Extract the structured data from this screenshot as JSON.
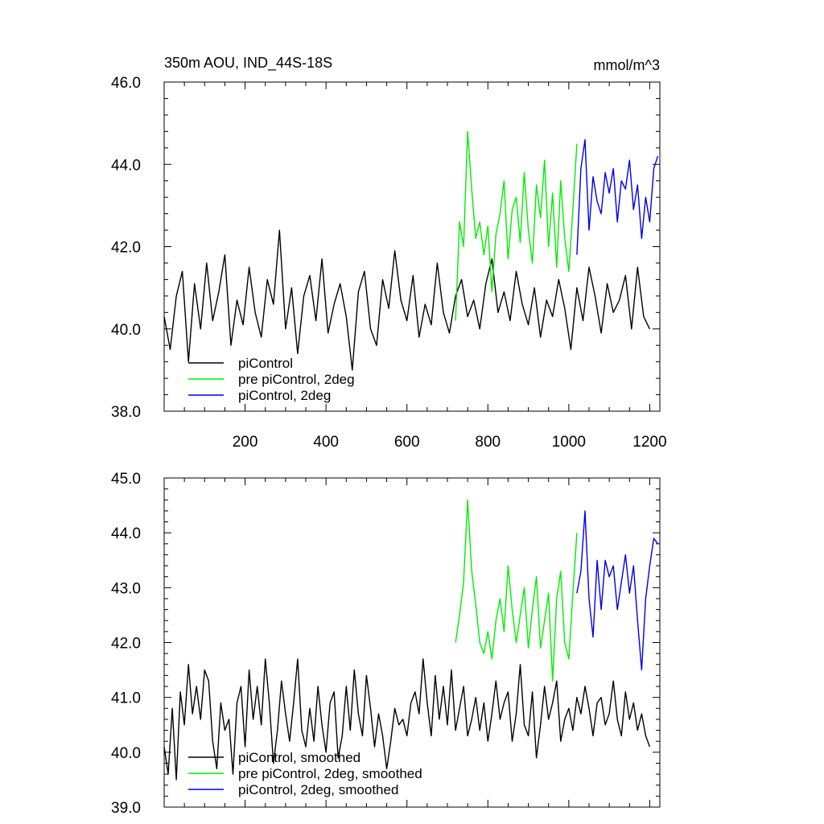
{
  "chart_data": [
    {
      "type": "line",
      "title": "350m AOU, IND_44S-18S",
      "units": "mmol/m^3",
      "xlim": [
        0,
        1225
      ],
      "ylim": [
        38.0,
        46.0
      ],
      "x_ticks": [
        200,
        400,
        600,
        800,
        1000,
        1200
      ],
      "x_tick_labels": [
        "200",
        "400",
        "600",
        "800",
        "1000",
        "1200"
      ],
      "y_ticks": [
        38.0,
        40.0,
        42.0,
        44.0,
        46.0
      ],
      "y_tick_labels": [
        "38.0",
        "40.0",
        "42.0",
        "44.0",
        "46.0"
      ],
      "legend_position": "bottom-left",
      "series": [
        {
          "name": "piControl",
          "color": "#000000",
          "x": [
            0,
            15,
            30,
            45,
            60,
            75,
            90,
            105,
            120,
            135,
            150,
            165,
            180,
            195,
            210,
            225,
            240,
            255,
            270,
            285,
            300,
            315,
            330,
            345,
            360,
            375,
            390,
            405,
            420,
            435,
            450,
            465,
            480,
            495,
            510,
            525,
            540,
            555,
            570,
            585,
            600,
            615,
            630,
            645,
            660,
            675,
            690,
            705,
            720,
            735,
            750,
            765,
            780,
            795,
            810,
            825,
            840,
            855,
            870,
            885,
            900,
            915,
            930,
            945,
            960,
            975,
            990,
            1005,
            1020,
            1035,
            1050,
            1065,
            1080,
            1095,
            1110,
            1125,
            1140,
            1155,
            1170,
            1185,
            1200
          ],
          "y": [
            40.3,
            39.5,
            40.8,
            41.4,
            39.2,
            41.1,
            40.0,
            41.6,
            40.2,
            40.9,
            41.8,
            39.6,
            40.7,
            40.1,
            41.5,
            40.4,
            39.8,
            41.2,
            40.6,
            42.4,
            40.0,
            41.0,
            39.4,
            40.8,
            41.3,
            40.2,
            41.7,
            39.9,
            40.6,
            41.1,
            40.3,
            39.0,
            40.9,
            41.4,
            40.0,
            39.6,
            41.2,
            40.5,
            41.9,
            40.7,
            40.2,
            41.3,
            39.8,
            40.6,
            40.1,
            41.6,
            40.4,
            39.9,
            40.8,
            41.2,
            40.3,
            40.7,
            40.0,
            41.1,
            41.7,
            40.4,
            40.9,
            40.2,
            41.4,
            40.6,
            40.1,
            41.0,
            39.8,
            40.7,
            40.3,
            41.2,
            40.5,
            39.5,
            41.0,
            40.2,
            41.5,
            40.8,
            39.9,
            41.1,
            40.4,
            40.7,
            41.3,
            40.0,
            41.5,
            40.3,
            40.0
          ]
        },
        {
          "name": "pre piControl, 2deg",
          "color": "#00ee00",
          "x": [
            720,
            730,
            740,
            750,
            760,
            770,
            780,
            790,
            800,
            810,
            820,
            830,
            840,
            850,
            860,
            870,
            880,
            890,
            900,
            910,
            920,
            930,
            940,
            950,
            960,
            970,
            980,
            990,
            1000,
            1010,
            1020
          ],
          "y": [
            40.2,
            42.6,
            42.0,
            44.8,
            43.4,
            42.2,
            42.6,
            41.8,
            42.5,
            40.9,
            42.3,
            42.8,
            43.6,
            41.7,
            42.9,
            43.2,
            42.1,
            43.8,
            42.4,
            41.6,
            43.5,
            42.7,
            44.1,
            42.0,
            43.3,
            41.5,
            43.6,
            42.2,
            41.4,
            42.9,
            44.5
          ]
        },
        {
          "name": "piControl, 2deg",
          "color": "#0000ee",
          "x": [
            1020,
            1030,
            1040,
            1050,
            1060,
            1070,
            1080,
            1090,
            1100,
            1110,
            1120,
            1130,
            1140,
            1150,
            1160,
            1170,
            1180,
            1190,
            1200,
            1210,
            1220
          ],
          "y": [
            41.8,
            43.9,
            44.6,
            42.4,
            43.7,
            43.1,
            42.8,
            43.8,
            43.3,
            43.9,
            42.6,
            43.6,
            43.4,
            44.1,
            42.9,
            43.5,
            42.2,
            43.2,
            42.6,
            43.9,
            44.2
          ]
        }
      ]
    },
    {
      "type": "line",
      "xlim": [
        0,
        1225
      ],
      "ylim": [
        39.0,
        45.0
      ],
      "x_ticks": [
        200,
        400,
        600,
        800,
        1000,
        1200
      ],
      "y_ticks": [
        39.0,
        40.0,
        41.0,
        42.0,
        43.0,
        44.0,
        45.0
      ],
      "y_tick_labels": [
        "39.0",
        "40.0",
        "41.0",
        "42.0",
        "43.0",
        "44.0",
        "45.0"
      ],
      "legend_position": "bottom-left",
      "series": [
        {
          "name": "piControl, smoothed",
          "color": "#000000",
          "x": [
            0,
            10,
            20,
            30,
            40,
            50,
            60,
            70,
            80,
            90,
            100,
            110,
            120,
            130,
            140,
            150,
            160,
            170,
            180,
            190,
            200,
            210,
            220,
            230,
            240,
            250,
            260,
            270,
            280,
            290,
            300,
            310,
            320,
            330,
            340,
            350,
            360,
            370,
            380,
            390,
            400,
            410,
            420,
            430,
            440,
            450,
            460,
            470,
            480,
            490,
            500,
            510,
            520,
            530,
            540,
            550,
            560,
            570,
            580,
            590,
            600,
            610,
            620,
            630,
            640,
            650,
            660,
            670,
            680,
            690,
            700,
            710,
            720,
            730,
            740,
            750,
            760,
            770,
            780,
            790,
            800,
            810,
            820,
            830,
            840,
            850,
            860,
            870,
            880,
            890,
            900,
            910,
            920,
            930,
            940,
            950,
            960,
            970,
            980,
            990,
            1000,
            1010,
            1020,
            1030,
            1040,
            1050,
            1060,
            1070,
            1080,
            1090,
            1100,
            1110,
            1120,
            1130,
            1140,
            1150,
            1160,
            1170,
            1180,
            1190,
            1200
          ],
          "y": [
            40.1,
            39.6,
            40.8,
            39.5,
            41.1,
            40.5,
            41.6,
            40.7,
            41.2,
            40.6,
            41.5,
            41.3,
            40.2,
            39.7,
            40.9,
            40.4,
            40.6,
            39.6,
            40.9,
            41.2,
            40.1,
            41.5,
            40.6,
            41.2,
            40.5,
            41.7,
            40.9,
            39.8,
            40.4,
            41.3,
            40.7,
            40.2,
            40.9,
            41.7,
            40.4,
            40.1,
            40.8,
            40.2,
            41.2,
            40.5,
            40.0,
            40.9,
            41.1,
            39.9,
            40.3,
            41.2,
            40.4,
            41.5,
            40.7,
            40.3,
            41.4,
            40.8,
            40.1,
            40.7,
            40.3,
            39.7,
            40.2,
            40.8,
            40.5,
            40.6,
            40.3,
            40.9,
            41.1,
            40.7,
            41.7,
            40.9,
            40.3,
            41.4,
            40.6,
            41.2,
            40.5,
            41.5,
            40.4,
            40.8,
            41.2,
            40.3,
            40.6,
            41.0,
            40.4,
            40.9,
            40.2,
            40.7,
            41.3,
            40.6,
            40.9,
            41.1,
            40.2,
            40.7,
            41.6,
            40.5,
            40.3,
            41.1,
            39.9,
            40.5,
            41.2,
            40.6,
            40.9,
            41.3,
            40.2,
            40.6,
            40.8,
            40.4,
            41.0,
            40.7,
            41.2,
            40.8,
            40.3,
            40.9,
            41.0,
            40.5,
            40.7,
            41.3,
            40.6,
            40.3,
            41.1,
            40.6,
            40.9,
            40.4,
            40.7,
            40.3,
            40.1
          ]
        },
        {
          "name": "pre piControl, 2deg, smoothed",
          "color": "#00ee00",
          "x": [
            720,
            730,
            740,
            750,
            760,
            770,
            780,
            790,
            800,
            810,
            820,
            830,
            840,
            850,
            860,
            870,
            880,
            890,
            900,
            910,
            920,
            930,
            940,
            950,
            960,
            970,
            980,
            990,
            1000,
            1010,
            1020
          ],
          "y": [
            42.0,
            42.5,
            43.1,
            44.6,
            43.3,
            42.7,
            42.0,
            41.8,
            42.2,
            41.7,
            42.4,
            42.8,
            42.2,
            43.4,
            42.6,
            42.0,
            42.5,
            43.0,
            41.9,
            42.6,
            43.2,
            41.9,
            42.4,
            42.9,
            41.3,
            42.8,
            43.3,
            42.0,
            41.7,
            42.9,
            44.0
          ]
        },
        {
          "name": "piControl, 2deg, smoothed",
          "color": "#0000ee",
          "x": [
            1020,
            1030,
            1040,
            1050,
            1060,
            1070,
            1080,
            1090,
            1100,
            1110,
            1120,
            1130,
            1140,
            1150,
            1160,
            1170,
            1180,
            1190,
            1200,
            1210,
            1220
          ],
          "y": [
            42.9,
            43.3,
            44.4,
            42.8,
            42.1,
            43.5,
            42.6,
            43.5,
            43.2,
            43.4,
            42.6,
            43.1,
            43.6,
            42.9,
            43.4,
            42.4,
            41.5,
            42.8,
            43.4,
            43.9,
            43.8
          ]
        }
      ]
    }
  ]
}
